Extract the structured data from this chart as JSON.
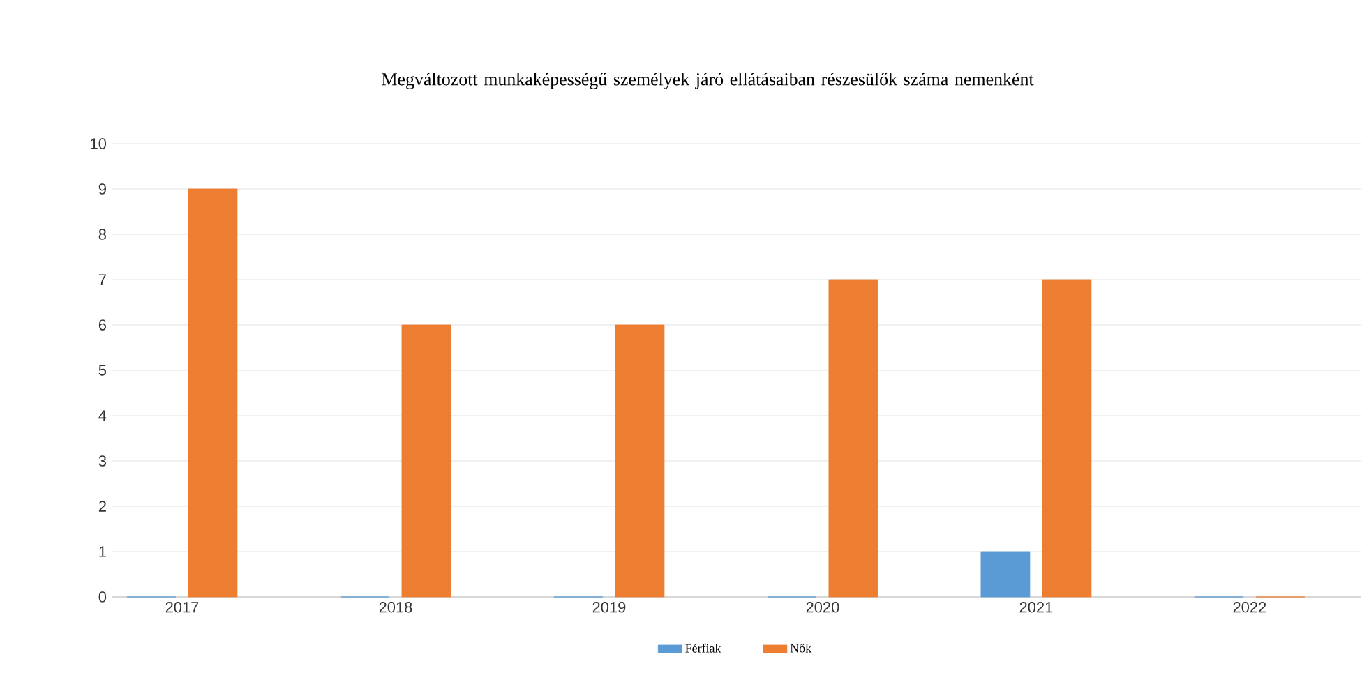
{
  "chart_data": {
    "type": "bar",
    "title": "Megváltozott munkaképességű személyek járó ellátásaiban részesülők száma nemenként",
    "categories": [
      "2017",
      "2018",
      "2019",
      "2020",
      "2021",
      "2022"
    ],
    "series": [
      {
        "name": "Férfiak",
        "color": "#5b9bd5",
        "values": [
          0,
          0,
          0,
          0,
          1,
          0
        ]
      },
      {
        "name": "Nők",
        "color": "#ed7d31",
        "values": [
          9,
          6,
          6,
          7,
          7,
          0
        ]
      }
    ],
    "ylim": [
      0,
      10
    ],
    "yticks": [
      0,
      1,
      2,
      3,
      4,
      5,
      6,
      7,
      8,
      9,
      10
    ],
    "grid": "y",
    "legend": "bottom"
  }
}
